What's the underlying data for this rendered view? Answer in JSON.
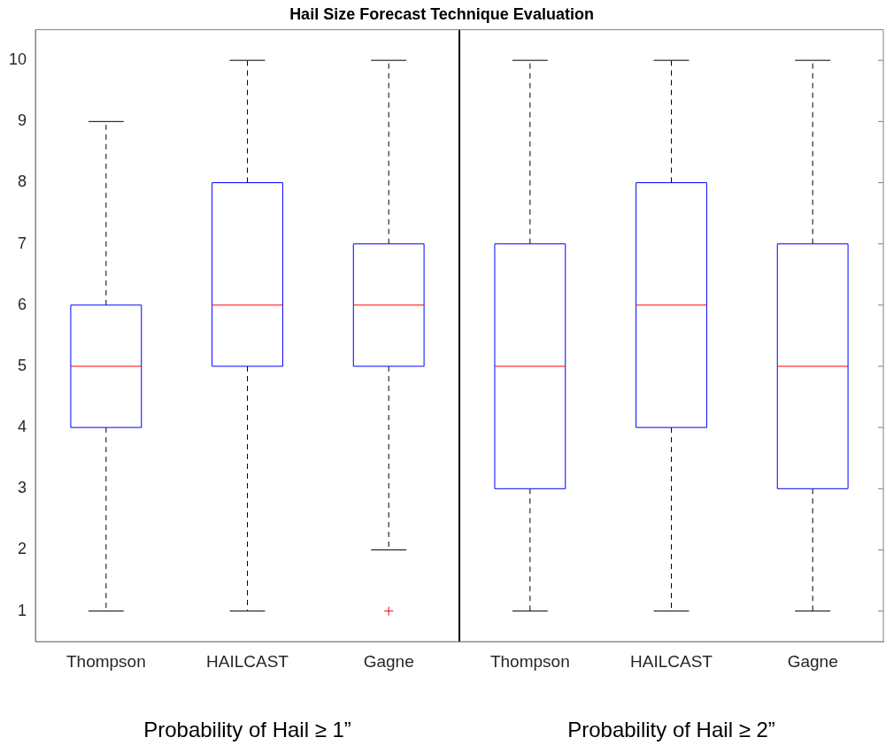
{
  "chart_data": {
    "type": "box",
    "title": "Hail Size Forecast Technique Evaluation",
    "categories": [
      "Thompson",
      "HAILCAST",
      "Gagne",
      "Thompson",
      "HAILCAST",
      "Gagne"
    ],
    "series": [
      {
        "color": "#0000ff",
        "boxes": [
          {
            "low": 1,
            "q1": 4,
            "median": 5,
            "q3": 6,
            "high": 9
          },
          {
            "low": 1,
            "q1": 5,
            "median": 6,
            "q3": 8,
            "high": 10
          },
          {
            "low": 2,
            "q1": 5,
            "median": 6,
            "q3": 7,
            "high": 10,
            "outliers": [
              1
            ]
          },
          {
            "low": 1,
            "q1": 3,
            "median": 5,
            "q3": 7,
            "high": 10
          },
          {
            "low": 1,
            "q1": 4,
            "median": 6,
            "q3": 8,
            "high": 10
          },
          {
            "low": 1,
            "q1": 3,
            "median": 5,
            "q3": 7,
            "high": 10
          }
        ]
      }
    ],
    "ylim": [
      0.5,
      10.5
    ],
    "yticks": [
      1,
      2,
      3,
      4,
      5,
      6,
      7,
      8,
      9,
      10
    ],
    "annotations": [
      "Probability of Hail ≥ 1”",
      "Probability of Hail ≥ 2”"
    ],
    "grid": false,
    "legend": false
  }
}
